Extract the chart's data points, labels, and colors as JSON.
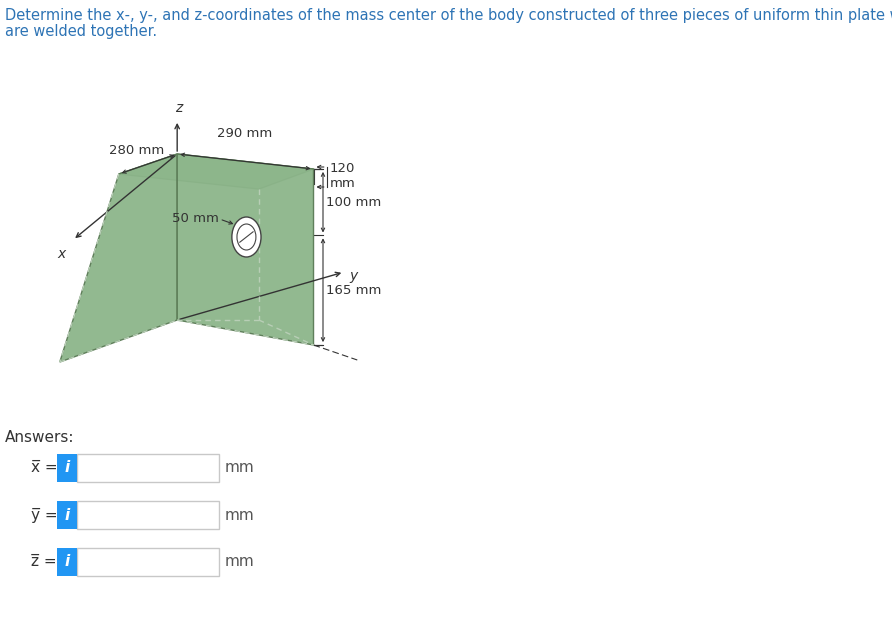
{
  "title_line1": "Determine the x-, y-, and z-coordinates of the mass center of the body constructed of three pieces of uniform thin plate which",
  "title_line2": "are welded together.",
  "title_color": "#2E74B5",
  "title_fontsize": 10.5,
  "bg_color": "#ffffff",
  "plate_color_left": "#8cb58a",
  "plate_color_top": "#a8c9a5",
  "plate_color_right": "#8cb58a",
  "plate_edge_color": "#5a7a55",
  "plate_alpha": 1.0,
  "dim_290": "290 mm",
  "dim_280": "280 mm",
  "dim_120_line1": "120",
  "dim_120_line2": "mm",
  "dim_50": "50 mm",
  "dim_100": "100 mm",
  "dim_165": "165 mm",
  "axis_x_label": "x",
  "axis_y_label": "y",
  "axis_z_label": "z",
  "answers_label": "Answers:",
  "x_bar_label": "x̅ =",
  "y_bar_label": "y̅ =",
  "z_bar_label": "z̅ =",
  "mm_label": "mm",
  "info_btn_color": "#2196F3",
  "info_btn_text": "i",
  "input_border_color": "#c8c8c8",
  "dot_color": "#c0c8c0",
  "dim_color": "#333333"
}
